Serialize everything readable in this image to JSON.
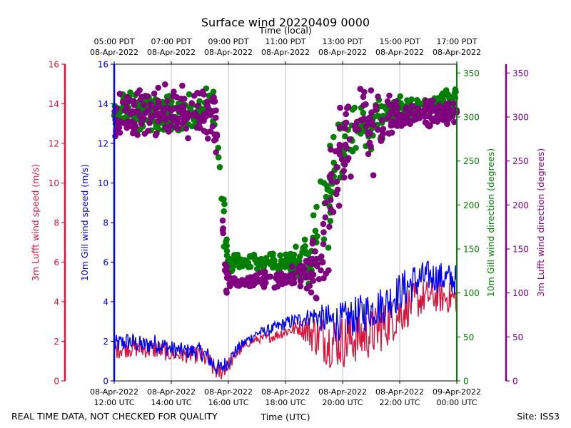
{
  "chart_data": {
    "type": "scatter",
    "title": "Surface wind 20220409 0000",
    "xlabel_bottom": "Time (UTC)",
    "xlabel_top": "Time (local)",
    "footer_left": "REAL TIME DATA, NOT CHECKED FOR QUALITY",
    "footer_right": "Site: ISS3",
    "x_range_utc_hours": [
      12,
      24
    ],
    "bottom_ticks": [
      {
        "hour": 12,
        "line1": "08-Apr-2022",
        "line2": "12:00 UTC"
      },
      {
        "hour": 14,
        "line1": "08-Apr-2022",
        "line2": "14:00 UTC"
      },
      {
        "hour": 16,
        "line1": "08-Apr-2022",
        "line2": "16:00 UTC"
      },
      {
        "hour": 18,
        "line1": "08-Apr-2022",
        "line2": "18:00 UTC"
      },
      {
        "hour": 20,
        "line1": "08-Apr-2022",
        "line2": "20:00 UTC"
      },
      {
        "hour": 22,
        "line1": "08-Apr-2022",
        "line2": "22:00 UTC"
      },
      {
        "hour": 24,
        "line1": "09-Apr-2022",
        "line2": "00:00 UTC"
      }
    ],
    "top_ticks": [
      {
        "hour": 12,
        "line1": "05:00 PDT",
        "line2": "08-Apr-2022"
      },
      {
        "hour": 14,
        "line1": "07:00 PDT",
        "line2": "08-Apr-2022"
      },
      {
        "hour": 16,
        "line1": "09:00 PDT",
        "line2": "08-Apr-2022"
      },
      {
        "hour": 18,
        "line1": "11:00 PDT",
        "line2": "08-Apr-2022"
      },
      {
        "hour": 20,
        "line1": "13:00 PDT",
        "line2": "08-Apr-2022"
      },
      {
        "hour": 22,
        "line1": "15:00 PDT",
        "line2": "08-Apr-2022"
      },
      {
        "hour": 24,
        "line1": "17:00 PDT",
        "line2": "08-Apr-2022"
      }
    ],
    "axes": {
      "lufft_speed": {
        "label": "3m Lufft wind speed (m/s)",
        "color": "#dc143c",
        "range": [
          0,
          16
        ],
        "ticks": [
          "0",
          "2",
          "4",
          "6",
          "8",
          "10",
          "12",
          "14",
          "16"
        ]
      },
      "gill_speed": {
        "label": "10m Gill wind speed (m/s)",
        "color": "#0000ff",
        "range": [
          0,
          16
        ],
        "ticks": [
          "0",
          "2",
          "4",
          "6",
          "8",
          "10",
          "12",
          "14",
          "16"
        ]
      },
      "gill_dir": {
        "label": "10m Gill wind direction (degrees)",
        "color": "#008000",
        "range": [
          0,
          360
        ],
        "ticks": [
          "0",
          "50",
          "100",
          "150",
          "200",
          "250",
          "300",
          "350"
        ]
      },
      "lufft_dir": {
        "label": "3m Lufft wind direction (degrees)",
        "color": "#800080",
        "range": [
          0,
          360
        ],
        "ticks": [
          "0",
          "50",
          "100",
          "150",
          "200",
          "250",
          "300",
          "350"
        ]
      }
    },
    "series": [
      {
        "name": "10m Gill wind speed",
        "kind": "line",
        "axis": "gill_speed",
        "color": "#0000ff",
        "points": [
          [
            12.0,
            1.8
          ],
          [
            12.5,
            2.0
          ],
          [
            13.0,
            1.8
          ],
          [
            13.5,
            1.9
          ],
          [
            14.0,
            1.6
          ],
          [
            14.5,
            1.5
          ],
          [
            15.0,
            1.5
          ],
          [
            15.3,
            1.2
          ],
          [
            15.5,
            0.8
          ],
          [
            15.7,
            0.6
          ],
          [
            16.0,
            1.0
          ],
          [
            16.3,
            1.6
          ],
          [
            16.7,
            2.1
          ],
          [
            17.0,
            2.4
          ],
          [
            17.5,
            2.6
          ],
          [
            18.0,
            2.9
          ],
          [
            18.5,
            3.1
          ],
          [
            19.0,
            3.3
          ],
          [
            19.5,
            3.0
          ],
          [
            20.0,
            3.0
          ],
          [
            20.5,
            3.3
          ],
          [
            21.0,
            3.6
          ],
          [
            21.5,
            3.9
          ],
          [
            22.0,
            4.5
          ],
          [
            22.5,
            5.0
          ],
          [
            23.0,
            5.3
          ],
          [
            23.5,
            5.2
          ],
          [
            24.0,
            5.1
          ]
        ],
        "noise": [
          0.5,
          0.5,
          0.45,
          0.5,
          0.45,
          0.4,
          0.45,
          0.5,
          0.5,
          0.45,
          0.4,
          0.3,
          0.25,
          0.25,
          0.3,
          0.35,
          0.4,
          0.5,
          0.9,
          1.0,
          1.0,
          1.0,
          1.0,
          1.0,
          1.0,
          0.8,
          0.8,
          0.8
        ]
      },
      {
        "name": "3m Lufft wind speed",
        "kind": "line",
        "axis": "lufft_speed",
        "color": "#dc143c",
        "points": [
          [
            12.0,
            1.6
          ],
          [
            12.5,
            1.7
          ],
          [
            13.0,
            1.6
          ],
          [
            13.5,
            1.6
          ],
          [
            14.0,
            1.4
          ],
          [
            14.5,
            1.3
          ],
          [
            15.0,
            1.3
          ],
          [
            15.3,
            1.0
          ],
          [
            15.5,
            0.6
          ],
          [
            15.7,
            0.4
          ],
          [
            16.0,
            0.8
          ],
          [
            16.3,
            1.4
          ],
          [
            16.7,
            1.9
          ],
          [
            17.0,
            2.1
          ],
          [
            17.5,
            2.2
          ],
          [
            18.0,
            2.5
          ],
          [
            18.5,
            2.7
          ],
          [
            19.0,
            2.4
          ],
          [
            19.5,
            2.0
          ],
          [
            20.0,
            2.0
          ],
          [
            20.5,
            2.2
          ],
          [
            21.0,
            2.4
          ],
          [
            21.5,
            2.8
          ],
          [
            22.0,
            3.4
          ],
          [
            22.5,
            4.0
          ],
          [
            23.0,
            4.3
          ],
          [
            23.5,
            4.2
          ],
          [
            24.0,
            4.2
          ]
        ],
        "noise": [
          0.5,
          0.5,
          0.45,
          0.5,
          0.45,
          0.4,
          0.45,
          0.5,
          0.5,
          0.45,
          0.4,
          0.3,
          0.2,
          0.2,
          0.25,
          0.3,
          0.4,
          1.1,
          1.3,
          1.4,
          1.3,
          1.3,
          1.2,
          1.1,
          1.0,
          0.8,
          0.8,
          0.8
        ]
      },
      {
        "name": "10m Gill wind direction",
        "kind": "scatter",
        "axis": "gill_dir",
        "color": "#008000",
        "points": [
          [
            12.0,
            305
          ],
          [
            13.0,
            305
          ],
          [
            14.0,
            300
          ],
          [
            15.0,
            310
          ],
          [
            15.5,
            310
          ],
          [
            15.75,
            240
          ],
          [
            15.9,
            150
          ],
          [
            16.0,
            135
          ],
          [
            17.0,
            135
          ],
          [
            18.0,
            135
          ],
          [
            18.7,
            140
          ],
          [
            19.2,
            160
          ],
          [
            19.6,
            220
          ],
          [
            20.0,
            270
          ],
          [
            20.5,
            285
          ],
          [
            21.0,
            290
          ],
          [
            21.5,
            300
          ],
          [
            22.0,
            310
          ],
          [
            23.0,
            310
          ],
          [
            24.0,
            320
          ]
        ],
        "noise": [
          20,
          20,
          20,
          20,
          20,
          40,
          30,
          8,
          8,
          8,
          20,
          50,
          50,
          30,
          25,
          25,
          15,
          12,
          12,
          12
        ]
      },
      {
        "name": "3m Lufft wind direction",
        "kind": "scatter",
        "axis": "lufft_dir",
        "color": "#800080",
        "points": [
          [
            12.0,
            295
          ],
          [
            13.0,
            300
          ],
          [
            14.0,
            310
          ],
          [
            15.0,
            300
          ],
          [
            15.5,
            300
          ],
          [
            15.75,
            220
          ],
          [
            15.9,
            120
          ],
          [
            16.0,
            110
          ],
          [
            17.0,
            115
          ],
          [
            18.0,
            115
          ],
          [
            18.7,
            125
          ],
          [
            19.2,
            140
          ],
          [
            19.6,
            200
          ],
          [
            20.0,
            270
          ],
          [
            20.5,
            290
          ],
          [
            21.0,
            280
          ],
          [
            21.5,
            300
          ],
          [
            22.0,
            300
          ],
          [
            23.0,
            305
          ],
          [
            24.0,
            305
          ]
        ],
        "noise": [
          25,
          25,
          25,
          25,
          30,
          40,
          30,
          8,
          8,
          8,
          15,
          50,
          60,
          50,
          40,
          40,
          25,
          12,
          12,
          12
        ]
      }
    ]
  }
}
